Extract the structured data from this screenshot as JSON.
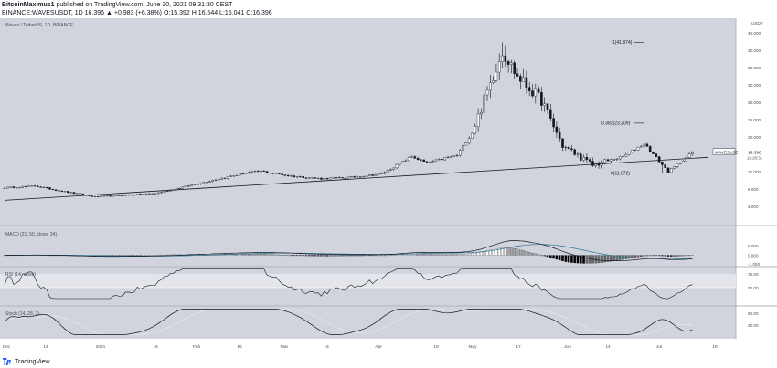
{
  "header": {
    "line1_author": "BitcoinMaximus1",
    "line1_rest": " published on TradingView.com, June 30, 2021 09:31:30 CEST",
    "line2": "BINANCE:WAVESUSDT, 1D 16.396 ▲ +0.983 (+6.38%) O:15.392 H:16.544 L:15.041 C:16.396"
  },
  "footer": {
    "brand": "TradingView"
  },
  "colors": {
    "plot_bg": "#d1d4dc",
    "candle": "#131722",
    "hollow_fill": "#ffffff",
    "trendline": "#131722",
    "macd_hist_black": "#000000",
    "macd_hist_gray": "#a8a8a8",
    "macd_hist_white": "#ffffff",
    "macd_signal": "#2b7a96",
    "rsi_band": "#e3e5ea",
    "stoch_d": "#e6e6e6"
  },
  "chart_data": [
    {
      "type": "candlestick",
      "title": "Waves / TetherUS, 1D, BINANCE",
      "symbol_tag": "WAVESUSDT",
      "last_price": "16.396",
      "countdown": "16:28:31",
      "price_axis_label": "USDT",
      "ylim": [
        0,
        47
      ],
      "yticks": [
        "44.000",
        "40.000",
        "36.000",
        "32.000",
        "28.000",
        "24.000",
        "20.000",
        "16.000",
        "12.000",
        "8.000",
        "4.000"
      ],
      "x_labels": [
        "Dec",
        "14",
        "2021",
        "18",
        "Feb",
        "15",
        "Mar",
        "15",
        "Apr",
        "19",
        "May",
        "17",
        "Jun",
        "14",
        "Jul",
        "19"
      ],
      "fib_levels": [
        {
          "label": "1(41.874)",
          "value": 41.874
        },
        {
          "label": "0.382(23.209)",
          "value": 23.209
        },
        {
          "label": "0(11.672)",
          "value": 11.672
        }
      ],
      "trendline": {
        "start": {
          "day": 0,
          "price": 5.4
        },
        "end": {
          "day": 209,
          "price": 14.3
        }
      },
      "anchors": [
        [
          0,
          8.3
        ],
        [
          10,
          8.7
        ],
        [
          20,
          7.4
        ],
        [
          30,
          6.2
        ],
        [
          40,
          6.6
        ],
        [
          50,
          7.0
        ],
        [
          60,
          8.6
        ],
        [
          70,
          10.2
        ],
        [
          80,
          11.7
        ],
        [
          85,
          12.1
        ],
        [
          95,
          11.0
        ],
        [
          105,
          10.4
        ],
        [
          115,
          10.7
        ],
        [
          125,
          11.5
        ],
        [
          135,
          15.5
        ],
        [
          140,
          14.0
        ],
        [
          150,
          15.8
        ],
        [
          155,
          21.0
        ],
        [
          165,
          40.0
        ],
        [
          170,
          34.0
        ],
        [
          178,
          28.5
        ],
        [
          185,
          18.0
        ],
        [
          195,
          13.5
        ],
        [
          205,
          15.5
        ],
        [
          212,
          18.5
        ],
        [
          220,
          12.0
        ],
        [
          228,
          16.4
        ]
      ]
    },
    {
      "type": "histogram",
      "title": "MACD (21, 50, close, 24)",
      "yticks": [
        "5.000",
        "0.000",
        "-1.000"
      ]
    },
    {
      "type": "line",
      "title": "RSI (14, close)",
      "yticks": [
        "75.00",
        "50.00"
      ]
    },
    {
      "type": "line",
      "title": "Stoch (14, 28, 3)",
      "yticks": [
        "80.00",
        "40.00"
      ]
    }
  ]
}
